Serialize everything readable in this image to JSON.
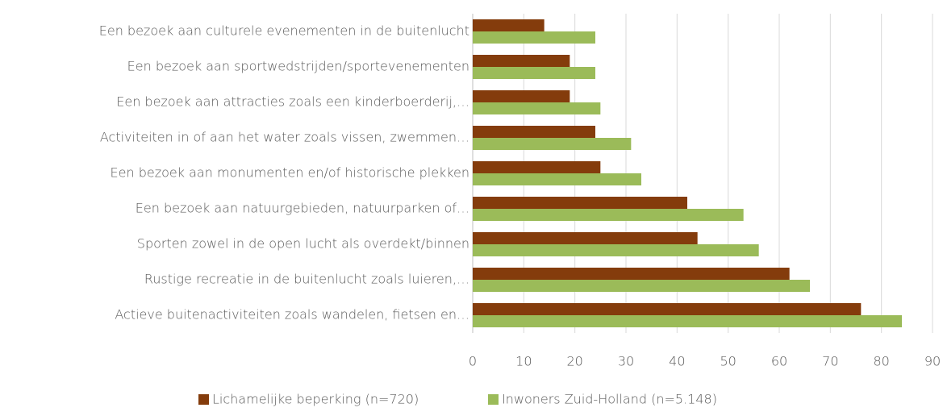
{
  "chart_data": {
    "type": "bar",
    "orientation": "horizontal",
    "categories": [
      "Een bezoek aan culturele evenementen in de buitenlucht",
      "Een bezoek aan sportwedstrijden/sportevenementen",
      "Een bezoek aan attracties zoals een kinderboerderij,…",
      "Activiteiten in of aan het water zoals vissen, zwemmen…",
      "Een bezoek aan monumenten en/of historische plekken",
      "Een bezoek aan natuurgebieden, natuurparken of…",
      "Sporten zowel in de open lucht als overdekt/binnen",
      "Rustige recreatie in de buitenlucht zoals luieren,…",
      "Actieve buitenactiviteiten zoals wandelen, fietsen en…"
    ],
    "series": [
      {
        "name": "Lichamelijke beperking (n=720)",
        "color": "#843c0c",
        "values": [
          14,
          19,
          19,
          24,
          25,
          42,
          44,
          62,
          76
        ]
      },
      {
        "name": "Inwoners Zuid-Holland (n=5.148)",
        "color": "#9bbb59",
        "values": [
          24,
          24,
          25,
          31,
          33,
          53,
          56,
          66,
          84
        ]
      }
    ],
    "xlim": [
      0,
      90
    ],
    "xticks": [
      0,
      10,
      20,
      30,
      40,
      50,
      60,
      70,
      80,
      90
    ],
    "grid": true,
    "legend": "bottom"
  }
}
